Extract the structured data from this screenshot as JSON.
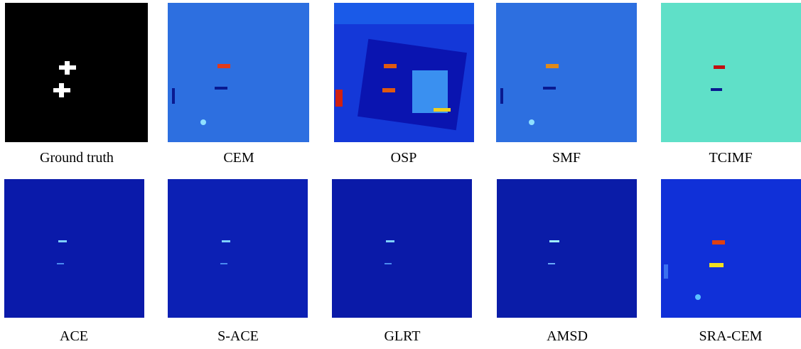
{
  "panels": [
    {
      "caption": "Ground truth"
    },
    {
      "caption": "CEM"
    },
    {
      "caption": "OSP"
    },
    {
      "caption": "SMF"
    },
    {
      "caption": "TCIMF"
    },
    {
      "caption": "ACE"
    },
    {
      "caption": "S-ACE"
    },
    {
      "caption": "GLRT"
    },
    {
      "caption": "AMSD"
    },
    {
      "caption": "SRA-CEM"
    }
  ]
}
